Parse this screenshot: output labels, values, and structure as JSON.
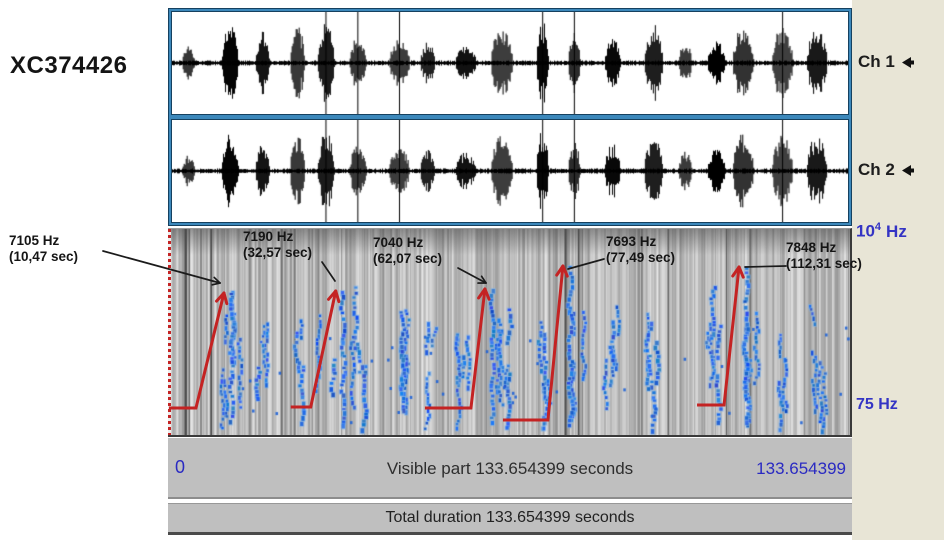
{
  "app": {
    "title": "XC374426"
  },
  "channels": [
    {
      "label": "Ch 1"
    },
    {
      "label": "Ch 2"
    }
  ],
  "spectrogram": {
    "freq_axis_top": {
      "base": "10",
      "exp": "4",
      "unit": "Hz"
    },
    "freq_axis_bottom": "75 Hz"
  },
  "annotations": [
    {
      "freq": "7105 Hz",
      "time": "(10,47 sec)",
      "freq_hz": 7105,
      "seconds": 10.47
    },
    {
      "freq": "7190 Hz",
      "time": "(32,57 sec)",
      "freq_hz": 7190,
      "seconds": 32.57
    },
    {
      "freq": "7040 Hz",
      "time": "(62,07 sec)",
      "freq_hz": 7040,
      "seconds": 62.07
    },
    {
      "freq": "7693 Hz",
      "time": "(77,49 sec)",
      "freq_hz": 7693,
      "seconds": 77.49
    },
    {
      "freq": "7848 Hz",
      "time": "(112,31 sec)",
      "freq_hz": 7848,
      "seconds": 112.31
    }
  ],
  "timeline": {
    "visible_start": "0",
    "visible_end": "133.654399",
    "visible_label": "Visible part 133.654399 seconds",
    "total_label": "Total duration 133.654399 seconds",
    "total_seconds": 133.654399
  },
  "colors": {
    "arrow_red": "#c42323",
    "trace_blue_core": "#1e62d6",
    "trace_blue_halo": "#7fb2e8",
    "label_blue": "#3434c4",
    "pointer_black": "#1b1b1b",
    "panel_border_blue": "#3c88bb",
    "gutter_beige": "#e8e5d6",
    "bar_gray": "#bfbfbf",
    "waveform_black": "#000000"
  }
}
